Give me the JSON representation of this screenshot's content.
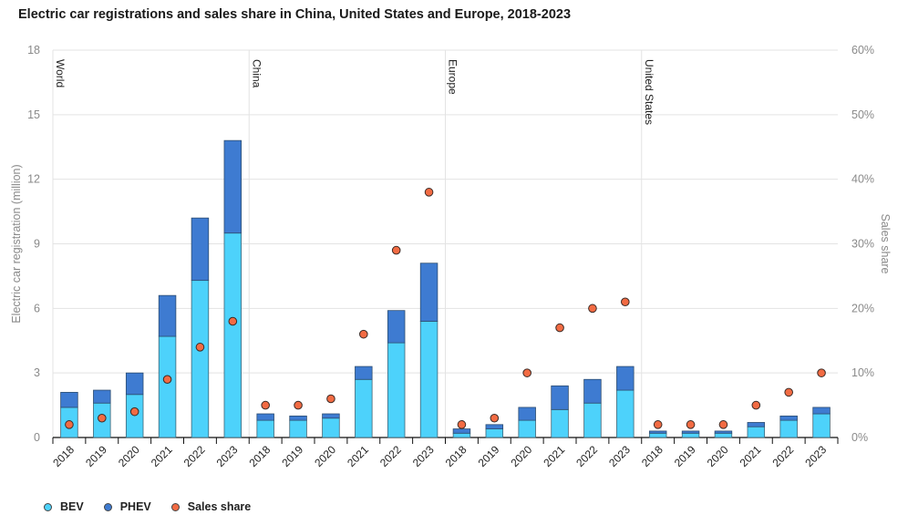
{
  "chart_data": {
    "type": "bar",
    "subtype": "stacked-bar-with-scatter-secondary-axis",
    "title": "Electric car registrations and sales share in China, United States and Europe, 2018-2023",
    "ylabel": "Electric car registration (million)",
    "y2label": "Sales share",
    "ylim": [
      0,
      18
    ],
    "yticks": [
      0,
      3,
      6,
      9,
      12,
      15,
      18
    ],
    "y2lim": [
      0,
      60
    ],
    "y2ticks": [
      "0%",
      "10%",
      "20%",
      "30%",
      "40%",
      "50%",
      "60%"
    ],
    "y2tick_values": [
      0,
      10,
      20,
      30,
      40,
      50,
      60
    ],
    "grid": true,
    "legend_position": "bottom-left",
    "legend": [
      {
        "name": "BEV",
        "color": "#4dd2fb"
      },
      {
        "name": "PHEV",
        "color": "#3e7bd1"
      },
      {
        "name": "Sales share",
        "color": "#f26b43"
      }
    ],
    "groups": [
      {
        "name": "World",
        "categories": [
          "2018",
          "2019",
          "2020",
          "2021",
          "2022",
          "2023"
        ],
        "BEV": [
          1.4,
          1.6,
          2.0,
          4.7,
          7.3,
          9.5
        ],
        "PHEV": [
          0.7,
          0.6,
          1.0,
          1.9,
          2.9,
          4.3
        ],
        "sales_share": [
          2,
          3,
          4,
          9,
          14,
          18
        ]
      },
      {
        "name": "China",
        "categories": [
          "2018",
          "2019",
          "2020",
          "2021",
          "2022",
          "2023"
        ],
        "BEV": [
          0.8,
          0.8,
          0.9,
          2.7,
          4.4,
          5.4
        ],
        "PHEV": [
          0.3,
          0.2,
          0.2,
          0.6,
          1.5,
          2.7
        ],
        "sales_share": [
          5,
          5,
          6,
          16,
          29,
          38
        ]
      },
      {
        "name": "Europe",
        "categories": [
          "2018",
          "2019",
          "2020",
          "2021",
          "2022",
          "2023"
        ],
        "BEV": [
          0.2,
          0.4,
          0.8,
          1.3,
          1.6,
          2.2
        ],
        "PHEV": [
          0.2,
          0.2,
          0.6,
          1.1,
          1.1,
          1.1
        ],
        "sales_share": [
          2,
          3,
          10,
          17,
          20,
          21
        ]
      },
      {
        "name": "United States",
        "categories": [
          "2018",
          "2019",
          "2020",
          "2021",
          "2022",
          "2023"
        ],
        "BEV": [
          0.2,
          0.2,
          0.2,
          0.5,
          0.8,
          1.1
        ],
        "PHEV": [
          0.1,
          0.1,
          0.1,
          0.2,
          0.2,
          0.3
        ],
        "sales_share": [
          2,
          2,
          2,
          5,
          7,
          10
        ]
      }
    ]
  }
}
